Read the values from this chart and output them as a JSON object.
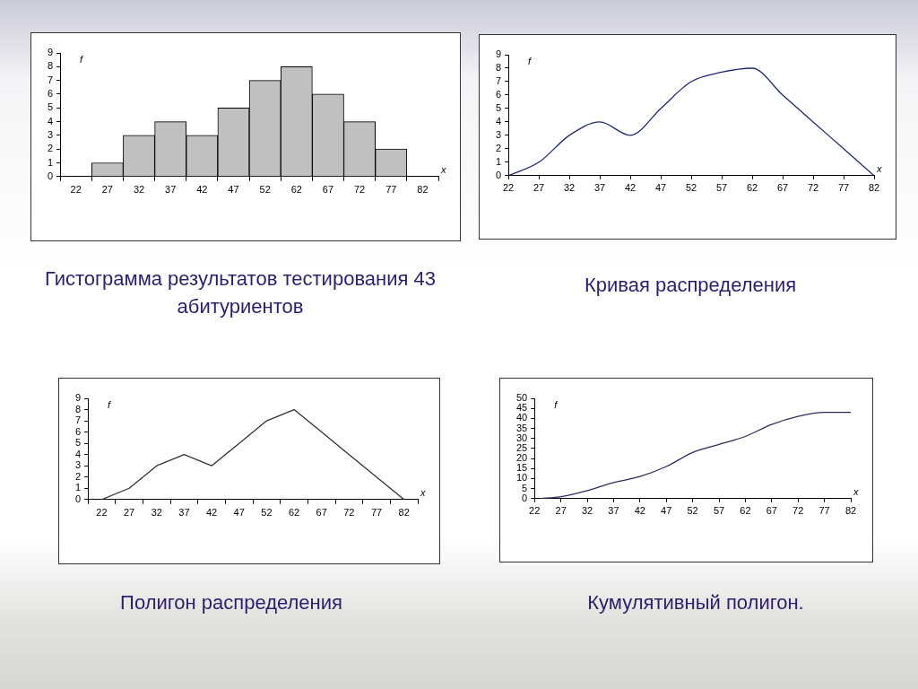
{
  "chart_data": [
    {
      "type": "bar",
      "title": "Гистограмма результатов тестирования 43 абитуриентов",
      "xlabel": "x",
      "ylabel": "f",
      "categories": [
        "22",
        "27",
        "32",
        "37",
        "42",
        "47",
        "52",
        "62",
        "67",
        "72",
        "77",
        "82"
      ],
      "values": [
        0,
        1,
        3,
        4,
        3,
        5,
        7,
        8,
        6,
        4,
        2,
        0
      ],
      "color": "#c0c0c0",
      "ylim": [
        0,
        9
      ],
      "yticks": [
        0,
        1,
        2,
        3,
        4,
        5,
        6,
        7,
        8,
        9
      ]
    },
    {
      "type": "line",
      "title": "Кривая распределения",
      "xlabel": "x",
      "ylabel": "f",
      "x": [
        22,
        27,
        32,
        37,
        42,
        47,
        52,
        57,
        62,
        67,
        72,
        77,
        82
      ],
      "values": [
        0,
        1,
        3,
        4,
        3,
        5,
        7,
        7.7,
        8,
        6,
        4,
        2,
        0
      ],
      "color": "#1f2a6e",
      "marker": "none",
      "xlim": [
        22,
        82
      ],
      "xticks": [
        22,
        27,
        32,
        37,
        42,
        47,
        52,
        57,
        62,
        67,
        72,
        77,
        82
      ],
      "ylim": [
        0,
        9
      ],
      "yticks": [
        0,
        1,
        2,
        3,
        4,
        5,
        6,
        7,
        8,
        9
      ]
    },
    {
      "type": "line",
      "title": "Полигон распределения",
      "xlabel": "x",
      "ylabel": "f",
      "categories": [
        "22",
        "27",
        "32",
        "37",
        "42",
        "47",
        "52",
        "62",
        "67",
        "72",
        "77",
        "82"
      ],
      "values": [
        0,
        1,
        3,
        4,
        3,
        5,
        7,
        8,
        6,
        4,
        2,
        0
      ],
      "color": "#333333",
      "marker": "none",
      "ylim": [
        0,
        9
      ],
      "yticks": [
        0,
        1,
        2,
        3,
        4,
        5,
        6,
        7,
        8,
        9
      ]
    },
    {
      "type": "line",
      "title": "Кумулятивный полигон.",
      "xlabel": "x",
      "ylabel": "f",
      "x": [
        23,
        27,
        32,
        37,
        42,
        47,
        52,
        57,
        62,
        67,
        72,
        77,
        82
      ],
      "values": [
        0,
        1,
        4,
        8,
        11,
        16,
        23,
        27,
        31,
        37,
        41,
        43,
        43
      ],
      "color": "#2e2e5e",
      "marker": "none",
      "xlim": [
        22,
        82
      ],
      "xticks": [
        22,
        27,
        32,
        37,
        42,
        47,
        52,
        57,
        62,
        67,
        72,
        77,
        82
      ],
      "ylim": [
        0,
        50
      ],
      "yticks": [
        0,
        5,
        10,
        15,
        20,
        25,
        30,
        35,
        40,
        45,
        50
      ]
    }
  ]
}
